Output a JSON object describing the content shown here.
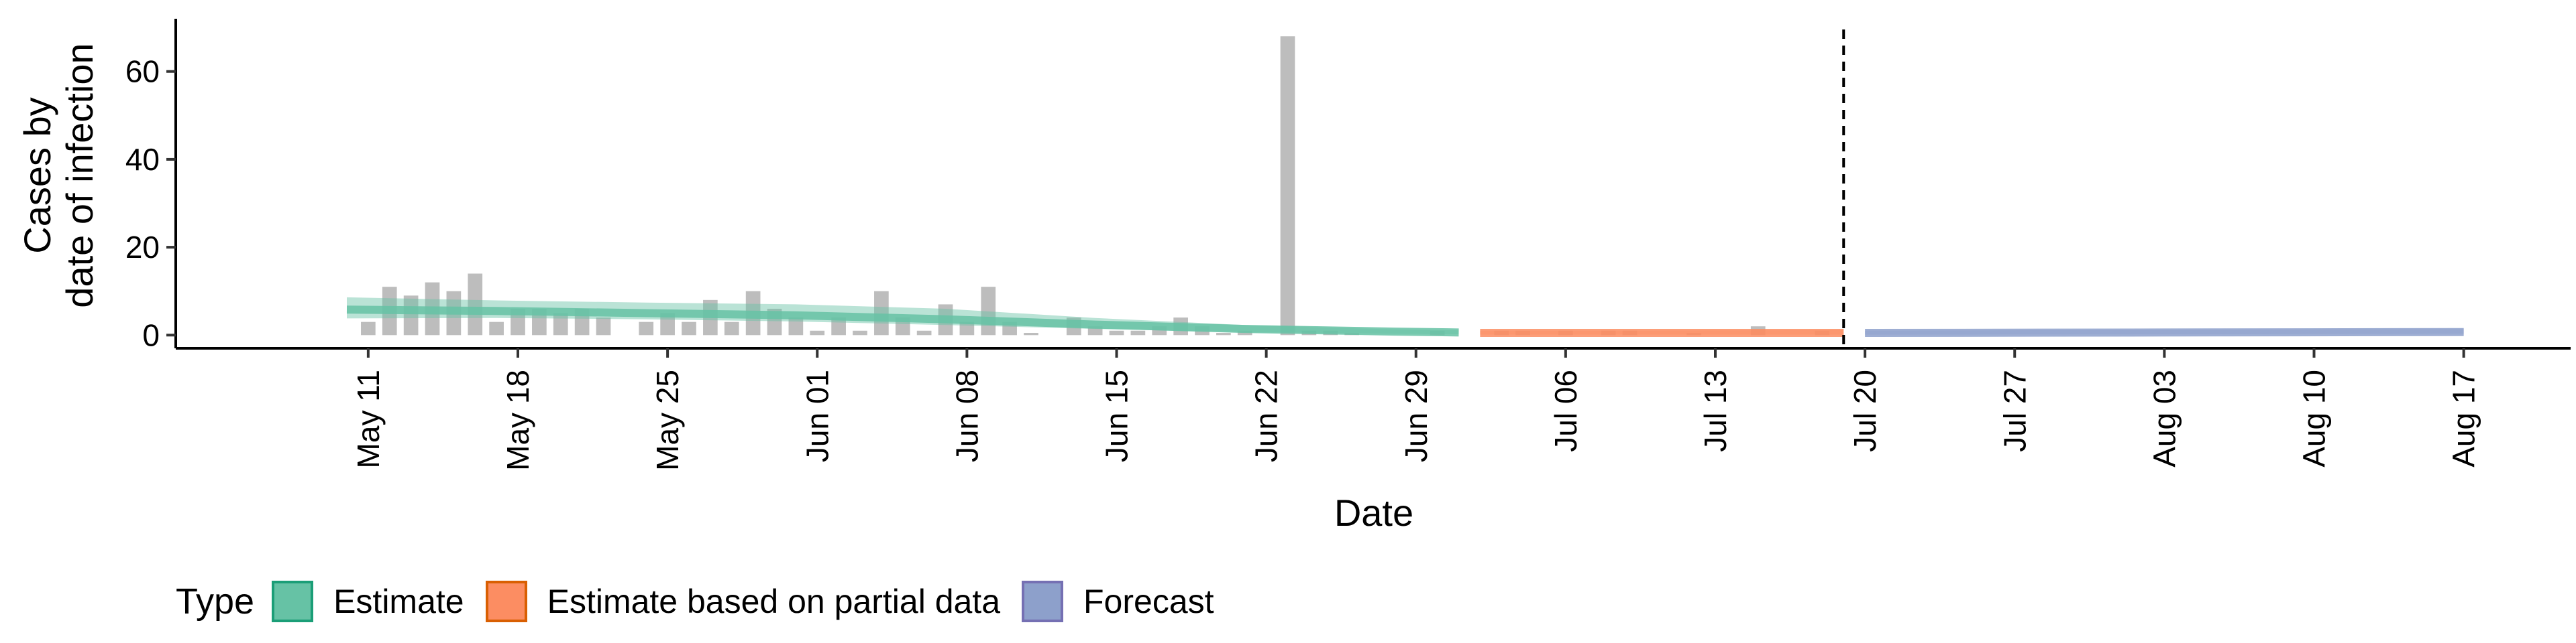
{
  "chart_data": {
    "type": "bar",
    "title": "",
    "xlabel": "Date",
    "ylabel_lines": [
      "Cases by",
      "date of infection"
    ],
    "xlim": [
      "2020-05-02",
      "2020-08-22"
    ],
    "ylim": [
      -3,
      72
    ],
    "y_ticks": [
      0,
      20,
      40,
      60
    ],
    "x_ticks": [
      {
        "date": "2020-05-11",
        "label": "May 11"
      },
      {
        "date": "2020-05-18",
        "label": "May 18"
      },
      {
        "date": "2020-05-25",
        "label": "May 25"
      },
      {
        "date": "2020-06-01",
        "label": "Jun 01"
      },
      {
        "date": "2020-06-08",
        "label": "Jun 08"
      },
      {
        "date": "2020-06-15",
        "label": "Jun 15"
      },
      {
        "date": "2020-06-22",
        "label": "Jun 22"
      },
      {
        "date": "2020-06-29",
        "label": "Jun 29"
      },
      {
        "date": "2020-07-06",
        "label": "Jul 06"
      },
      {
        "date": "2020-07-13",
        "label": "Jul 13"
      },
      {
        "date": "2020-07-20",
        "label": "Jul 20"
      },
      {
        "date": "2020-07-27",
        "label": "Jul 27"
      },
      {
        "date": "2020-08-03",
        "label": "Aug 03"
      },
      {
        "date": "2020-08-10",
        "label": "Aug 10"
      },
      {
        "date": "2020-08-17",
        "label": "Aug 17"
      }
    ],
    "reported_cases": {
      "color": "#bdbdbd",
      "points": [
        [
          "2020-05-11",
          3
        ],
        [
          "2020-05-12",
          11
        ],
        [
          "2020-05-13",
          9
        ],
        [
          "2020-05-14",
          12
        ],
        [
          "2020-05-15",
          10
        ],
        [
          "2020-05-16",
          14
        ],
        [
          "2020-05-17",
          3
        ],
        [
          "2020-05-18",
          6
        ],
        [
          "2020-05-19",
          6
        ],
        [
          "2020-05-20",
          5
        ],
        [
          "2020-05-21",
          6
        ],
        [
          "2020-05-22",
          4
        ],
        [
          "2020-05-24",
          3
        ],
        [
          "2020-05-25",
          5
        ],
        [
          "2020-05-26",
          3
        ],
        [
          "2020-05-27",
          8
        ],
        [
          "2020-05-28",
          3
        ],
        [
          "2020-05-29",
          10
        ],
        [
          "2020-05-30",
          6
        ],
        [
          "2020-05-31",
          4
        ],
        [
          "2020-06-01",
          1
        ],
        [
          "2020-06-02",
          4
        ],
        [
          "2020-06-03",
          1
        ],
        [
          "2020-06-04",
          10
        ],
        [
          "2020-06-05",
          4
        ],
        [
          "2020-06-06",
          1
        ],
        [
          "2020-06-07",
          7
        ],
        [
          "2020-06-08",
          3
        ],
        [
          "2020-06-09",
          11
        ],
        [
          "2020-06-10",
          3
        ],
        [
          "2020-06-11",
          0.5
        ],
        [
          "2020-06-13",
          4
        ],
        [
          "2020-06-14",
          2
        ],
        [
          "2020-06-15",
          1
        ],
        [
          "2020-06-16",
          1
        ],
        [
          "2020-06-17",
          2
        ],
        [
          "2020-06-18",
          4
        ],
        [
          "2020-06-19",
          2
        ],
        [
          "2020-06-20",
          0.5
        ],
        [
          "2020-06-21",
          1
        ],
        [
          "2020-06-23",
          68
        ],
        [
          "2020-06-24",
          1
        ],
        [
          "2020-06-25",
          1
        ],
        [
          "2020-06-26",
          0.5
        ],
        [
          "2020-06-30",
          1
        ],
        [
          "2020-07-03",
          1
        ],
        [
          "2020-07-04",
          1
        ],
        [
          "2020-07-06",
          1
        ],
        [
          "2020-07-08",
          1
        ],
        [
          "2020-07-09",
          1
        ],
        [
          "2020-07-12",
          0.5
        ],
        [
          "2020-07-15",
          2
        ],
        [
          "2020-07-18",
          1
        ]
      ]
    },
    "forecast_date": "2020-07-19",
    "series": [
      {
        "name": "Estimate",
        "color": "#1b9e77",
        "fill": "#66c2a5",
        "x": [
          "2020-05-10",
          "2020-05-17",
          "2020-05-24",
          "2020-05-31",
          "2020-06-07",
          "2020-06-14",
          "2020-06-21",
          "2020-06-28",
          "2020-07-01"
        ],
        "median": [
          5.8,
          5.5,
          5.0,
          4.5,
          3.6,
          2.4,
          1.4,
          0.8,
          0.6
        ],
        "lower": [
          3.8,
          3.9,
          3.6,
          3.1,
          2.3,
          1.4,
          0.7,
          0.3,
          0.2
        ],
        "upper": [
          8.6,
          7.9,
          7.4,
          7.0,
          6.0,
          3.9,
          2.3,
          1.3,
          1.1
        ]
      },
      {
        "name": "Estimate based on partial data",
        "color": "#d95f02",
        "fill": "#fc8d62",
        "x": [
          "2020-07-02",
          "2020-07-09",
          "2020-07-16",
          "2020-07-19"
        ],
        "median": [
          0.5,
          0.5,
          0.5,
          0.5
        ],
        "lower": [
          0.1,
          0.1,
          0.1,
          0.1
        ],
        "upper": [
          1.0,
          1.0,
          1.1,
          1.2
        ]
      },
      {
        "name": "Forecast",
        "color": "#7570b3",
        "fill": "#8da0cb",
        "x": [
          "2020-07-20",
          "2020-08-03",
          "2020-08-17"
        ],
        "median": [
          0.5,
          0.6,
          0.7
        ],
        "lower": [
          0.1,
          0.2,
          0.3
        ],
        "upper": [
          1.0,
          1.2,
          1.4
        ]
      }
    ],
    "legend": {
      "title": "Type",
      "position": "bottom"
    },
    "grid": false
  }
}
